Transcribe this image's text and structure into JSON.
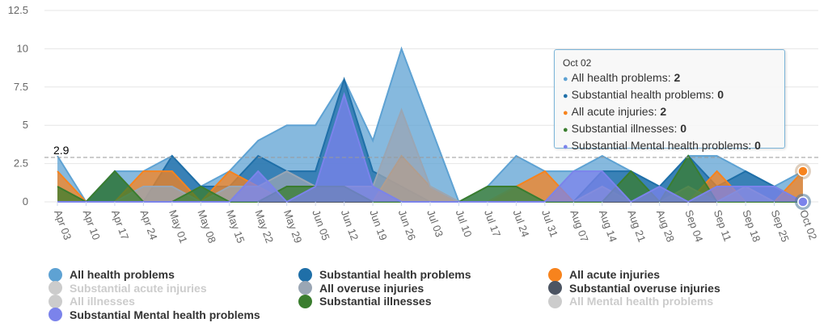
{
  "chart_data": {
    "type": "area",
    "title": "",
    "xlabel": "",
    "ylabel": "",
    "ylim": [
      0,
      12.5
    ],
    "yticks": [
      "0",
      "2.5",
      "5",
      "7.5",
      "10",
      "12.5"
    ],
    "ytick_values": [
      0,
      2.5,
      5,
      7.5,
      10,
      12.5
    ],
    "grid": true,
    "legend_position": "bottom",
    "categories": [
      "Apr 03",
      "Apr 10",
      "Apr 17",
      "Apr 24",
      "May 01",
      "May 08",
      "May 15",
      "May 22",
      "May 29",
      "Jun 05",
      "Jun 12",
      "Jun 19",
      "Jun 26",
      "Jul 03",
      "Jul 10",
      "Jul 17",
      "Jul 24",
      "Jul 31",
      "Aug 07",
      "Aug 14",
      "Aug 21",
      "Aug 28",
      "Sep 04",
      "Sep 11",
      "Sep 18",
      "Sep 25",
      "Oct 02"
    ],
    "threshold": {
      "value": 2.9,
      "label": "2.9",
      "style": "dashed"
    },
    "series": [
      {
        "name": "All health problems",
        "color": "#5ea2d3",
        "visible": true,
        "values": [
          3,
          0,
          2,
          2,
          3,
          1,
          2,
          4,
          5,
          5,
          8,
          4,
          10,
          5,
          0,
          1,
          3,
          2,
          2,
          3,
          2,
          1,
          3,
          3,
          2,
          1,
          2
        ]
      },
      {
        "name": "Substantial health problems",
        "color": "#1f6fa8",
        "visible": true,
        "values": [
          0,
          0,
          2,
          0,
          3,
          1,
          1,
          3,
          2,
          2,
          8,
          2,
          1,
          0,
          0,
          0,
          0,
          0,
          0,
          2,
          2,
          1,
          3,
          1,
          2,
          1,
          0
        ]
      },
      {
        "name": "All acute injuries",
        "color": "#f7831d",
        "visible": true,
        "values": [
          2,
          0,
          0,
          2,
          2,
          0,
          2,
          1,
          0,
          0,
          0,
          0,
          3,
          1,
          0,
          0,
          1,
          2,
          0,
          0,
          0,
          0,
          0,
          2,
          0,
          0,
          2
        ]
      },
      {
        "name": "Substantial acute injuries",
        "color": "#cccccc",
        "visible": false,
        "values": []
      },
      {
        "name": "All overuse injuries",
        "color": "#9aa6b4",
        "visible": true,
        "values": [
          0,
          0,
          0,
          1,
          1,
          0,
          1,
          1,
          2,
          1,
          1,
          1,
          6,
          1,
          0,
          0,
          1,
          0,
          0,
          1,
          0,
          0,
          1,
          0,
          1,
          0,
          0
        ]
      },
      {
        "name": "Substantial overuse injuries",
        "color": "#4c5462",
        "visible": true,
        "values": [
          0,
          0,
          0,
          0,
          0,
          0,
          0,
          0,
          0,
          0,
          0,
          0,
          0,
          0,
          0,
          0,
          0,
          0,
          0,
          0,
          0,
          0,
          0,
          0,
          0,
          0,
          0
        ]
      },
      {
        "name": "All illnesses",
        "color": "#cccccc",
        "visible": false,
        "values": []
      },
      {
        "name": "Substantial illnesses",
        "color": "#3a7d2e",
        "visible": true,
        "values": [
          1,
          0,
          2,
          0,
          0,
          1,
          0,
          0,
          1,
          1,
          1,
          0,
          0,
          0,
          0,
          1,
          1,
          0,
          0,
          0,
          2,
          0,
          3,
          0,
          0,
          0,
          0
        ]
      },
      {
        "name": "All Mental health problems",
        "color": "#cccccc",
        "visible": false,
        "values": []
      },
      {
        "name": "Substantial Mental health problems",
        "color": "#7b83eb",
        "visible": true,
        "values": [
          0,
          0,
          0,
          0,
          0,
          0,
          0,
          2,
          0,
          1,
          7,
          1,
          0,
          0,
          0,
          0,
          0,
          0,
          2,
          2,
          0,
          1,
          0,
          1,
          1,
          1,
          0
        ]
      }
    ]
  },
  "tooltip": {
    "title": "Oct 02",
    "rows": [
      {
        "label": "All health problems: ",
        "value": "2",
        "color": "#5ea2d3"
      },
      {
        "label": "Substantial health problems: ",
        "value": "0",
        "color": "#1f6fa8"
      },
      {
        "label": "All acute injuries: ",
        "value": "2",
        "color": "#f7831d"
      },
      {
        "label": "Substantial illnesses: ",
        "value": "0",
        "color": "#3a7d2e"
      },
      {
        "label": "Substantial Mental health problems: ",
        "value": "0",
        "color": "#7b83eb"
      }
    ]
  },
  "legend": {
    "columns": [
      [
        {
          "label": "All health problems",
          "color": "#5ea2d3",
          "active": true
        },
        {
          "label": "Substantial acute injuries",
          "color": "#cccccc",
          "active": false
        },
        {
          "label": "All illnesses",
          "color": "#cccccc",
          "active": false
        },
        {
          "label": "Substantial Mental health problems",
          "color": "#7b83eb",
          "active": true
        }
      ],
      [
        {
          "label": "Substantial health problems",
          "color": "#1f6fa8",
          "active": true
        },
        {
          "label": "All overuse injuries",
          "color": "#9aa6b4",
          "active": true
        },
        {
          "label": "Substantial illnesses",
          "color": "#3a7d2e",
          "active": true
        }
      ],
      [
        {
          "label": "All acute injuries",
          "color": "#f7831d",
          "active": true
        },
        {
          "label": "Substantial overuse injuries",
          "color": "#4c5462",
          "active": true
        },
        {
          "label": "All Mental health problems",
          "color": "#cccccc",
          "active": false
        }
      ]
    ]
  }
}
